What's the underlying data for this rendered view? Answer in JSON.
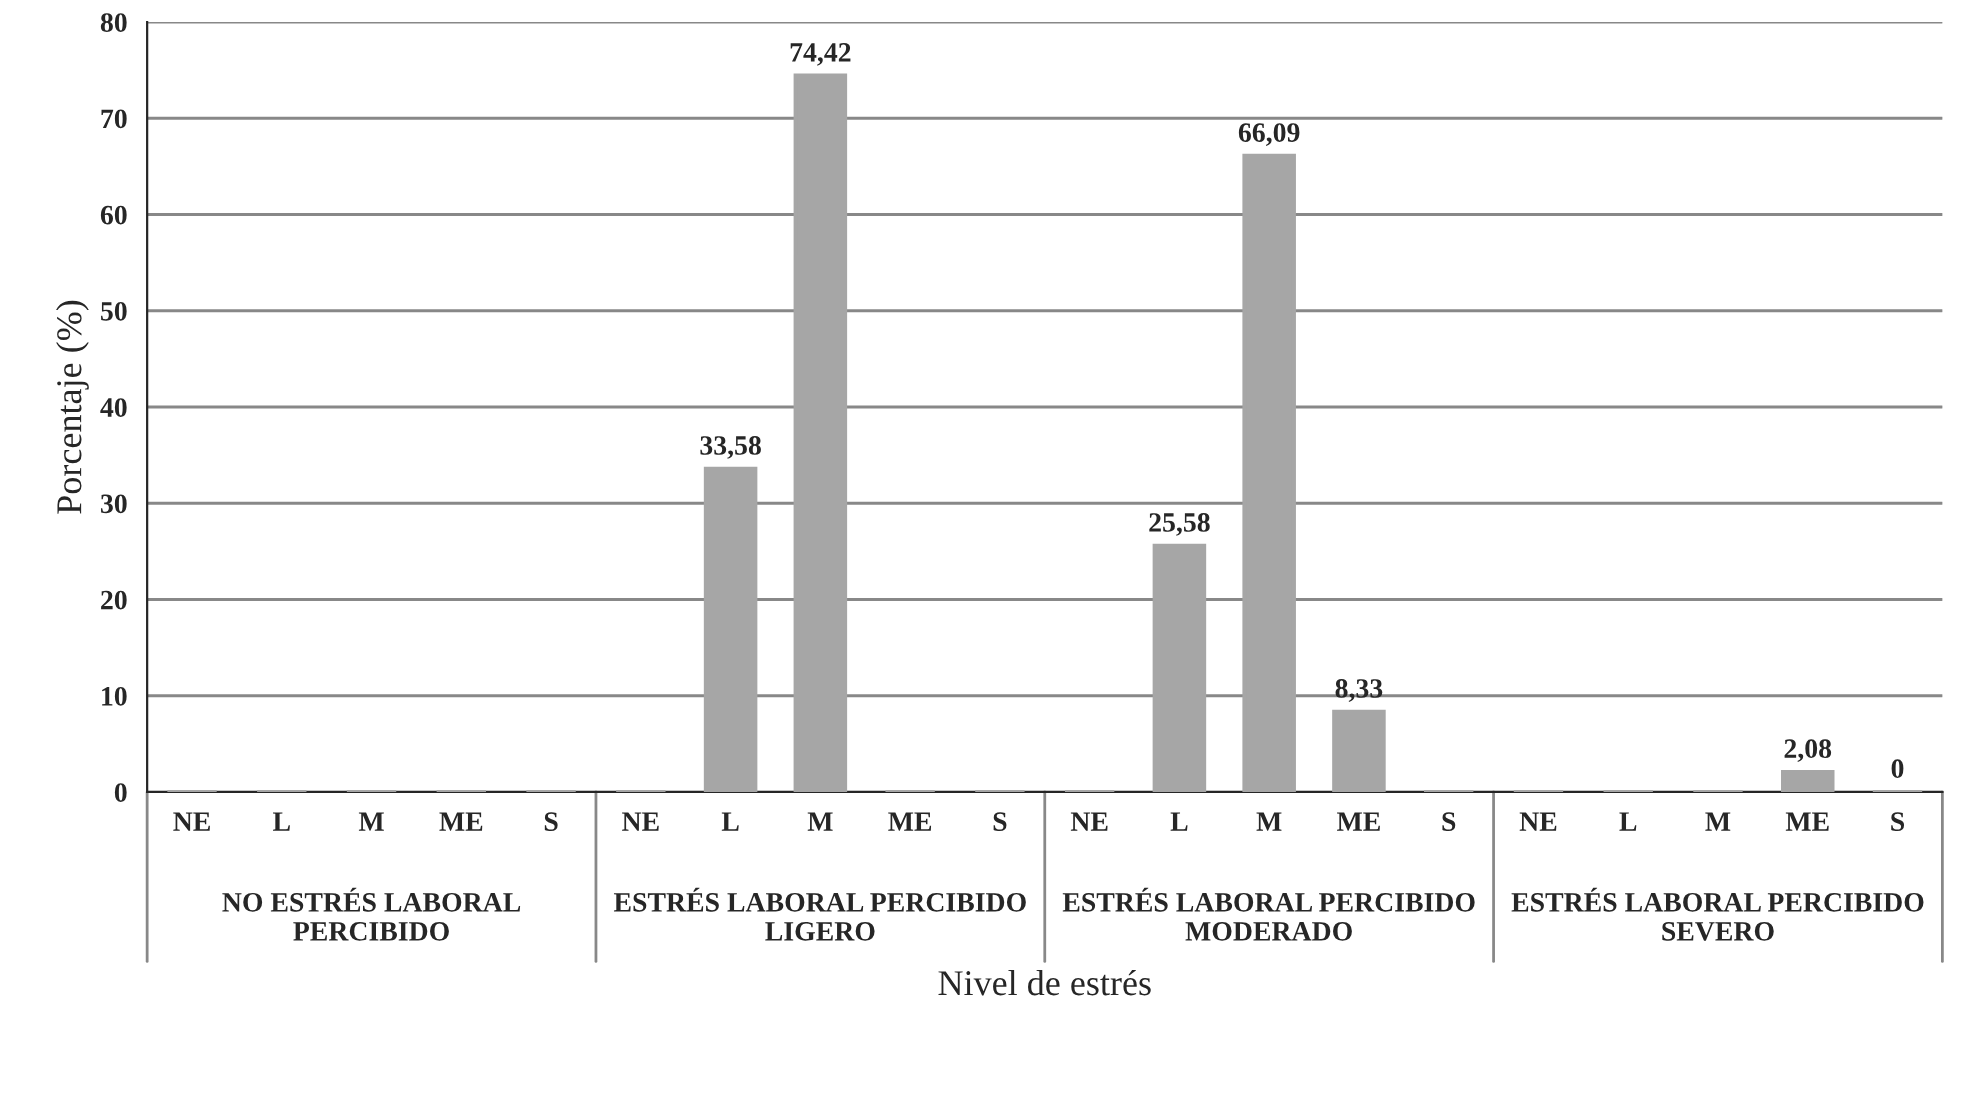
{
  "chart_data": {
    "type": "bar",
    "xlabel": "Nivel de estrés",
    "ylabel": "Porcentaje (%)",
    "categories": [
      "NE",
      "L",
      "M",
      "ME",
      "S",
      "NE",
      "L",
      "M",
      "ME",
      "S",
      "NE",
      "L",
      "M",
      "ME",
      "S",
      "NE",
      "L",
      "M",
      "ME",
      "S"
    ],
    "values": [
      0,
      0,
      0,
      0,
      0,
      0,
      33.58,
      74.42,
      0,
      0,
      0,
      25.58,
      66.09,
      8.33,
      0,
      0,
      0,
      0,
      2.08,
      0
    ],
    "value_labels": [
      null,
      null,
      null,
      null,
      null,
      null,
      "33,58",
      "74,42",
      null,
      null,
      null,
      "25,58",
      "66,09",
      "8,33",
      null,
      null,
      null,
      null,
      "2,08",
      "0"
    ],
    "color": "#a6a6a6",
    "ylim": [
      0,
      80
    ],
    "yticks": [
      0,
      10,
      20,
      30,
      40,
      50,
      60,
      70,
      80
    ],
    "grid": "y",
    "annotations": [
      "NO ESTRÉS LABORAL\nPERCIBIDO",
      "ESTRÉS LABORAL PERCIBIDO\nLIGERO",
      "ESTRÉS LABORAL PERCIBIDO\nMODERADO",
      "ESTRÉS LABORAL PERCIBIDO\nSEVERO"
    ]
  }
}
